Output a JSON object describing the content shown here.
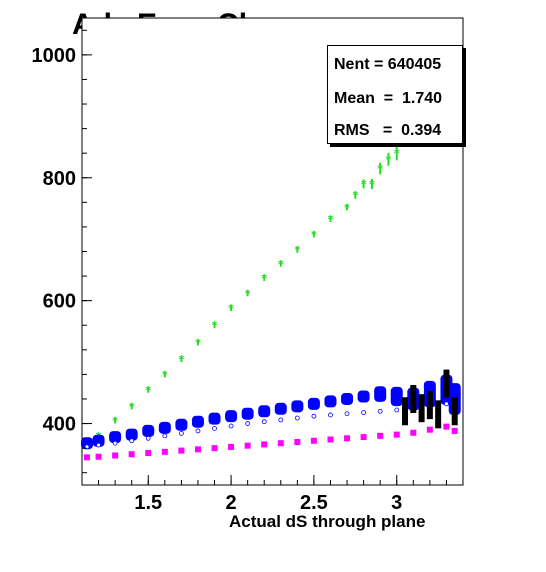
{
  "title": "Adc Even Clear",
  "stats": {
    "entries_label": "Nent = 640405",
    "mean_label": "Mean  =  1.740",
    "rms_label": "RMS   =  0.394"
  },
  "chart_data": {
    "type": "scatter",
    "title": "Adc Even Clear",
    "xlabel": "Actual dS through plane",
    "ylabel": "",
    "xlim": [
      1.1,
      3.4
    ],
    "ylim": [
      300,
      1060
    ],
    "xticks": [
      1.5,
      2,
      2.5,
      3
    ],
    "xtick_labels": [
      "1.5",
      "2",
      "2.5",
      "3"
    ],
    "yticks": [
      400,
      600,
      800,
      1000
    ],
    "ytick_labels": [
      "400",
      "600",
      "800",
      "1000"
    ],
    "grid": false,
    "legend": "none",
    "series": [
      {
        "color": "#22dd22",
        "x": [
          1.13,
          1.2,
          1.3,
          1.4,
          1.5,
          1.6,
          1.7,
          1.8,
          1.9,
          2.0,
          2.1,
          2.2,
          2.3,
          2.4,
          2.5,
          2.6,
          2.7,
          2.75,
          2.8,
          2.85,
          2.9,
          2.95,
          3.0,
          3.05,
          3.1,
          3.15,
          3.2,
          3.25,
          3.3,
          3.35
        ],
        "y": [
          370,
          380,
          405,
          428,
          455,
          480,
          505,
          532,
          560,
          588,
          612,
          637,
          660,
          683,
          708,
          733,
          752,
          772,
          790,
          790,
          815,
          830,
          840,
          865,
          880,
          885,
          900,
          925,
          960,
          895
        ]
      },
      {
        "color": "#0000ff",
        "x": [
          1.13,
          1.2,
          1.3,
          1.4,
          1.5,
          1.6,
          1.7,
          1.8,
          1.9,
          2.0,
          2.1,
          2.2,
          2.3,
          2.4,
          2.5,
          2.6,
          2.7,
          2.8,
          2.9,
          3.0,
          3.1,
          3.2,
          3.3,
          3.35
        ],
        "y": [
          368,
          372,
          378,
          382,
          388,
          393,
          398,
          403,
          408,
          412,
          416,
          420,
          424,
          428,
          432,
          436,
          440,
          444,
          448,
          444,
          440,
          448,
          455,
          440
        ]
      },
      {
        "color": "#ffffff",
        "x": [
          1.13,
          1.2,
          1.3,
          1.4,
          1.5,
          1.6,
          1.7,
          1.8,
          1.9,
          2.0,
          2.1,
          2.2,
          2.3,
          2.4,
          2.5,
          2.6,
          2.7,
          2.8,
          2.9,
          3.0,
          3.1,
          3.2,
          3.3,
          3.35
        ],
        "y": [
          362,
          365,
          368,
          372,
          376,
          380,
          384,
          388,
          392,
          396,
          400,
          403,
          406,
          409,
          412,
          414,
          416,
          418,
          420,
          422,
          425,
          428,
          432,
          425
        ]
      },
      {
        "color": "#000000",
        "x": [
          3.05,
          3.1,
          3.15,
          3.2,
          3.25,
          3.3,
          3.35
        ],
        "y": [
          420,
          440,
          425,
          430,
          415,
          465,
          420
        ]
      },
      {
        "color": "#ff00ff",
        "x": [
          1.13,
          1.2,
          1.3,
          1.4,
          1.5,
          1.6,
          1.7,
          1.8,
          1.9,
          2.0,
          2.1,
          2.2,
          2.3,
          2.4,
          2.5,
          2.6,
          2.7,
          2.8,
          2.9,
          3.0,
          3.1,
          3.2,
          3.3,
          3.35
        ],
        "y": [
          345,
          346,
          348,
          350,
          352,
          354,
          356,
          358,
          360,
          362,
          364,
          366,
          368,
          370,
          372,
          374,
          376,
          378,
          380,
          382,
          385,
          390,
          395,
          388
        ]
      }
    ]
  }
}
